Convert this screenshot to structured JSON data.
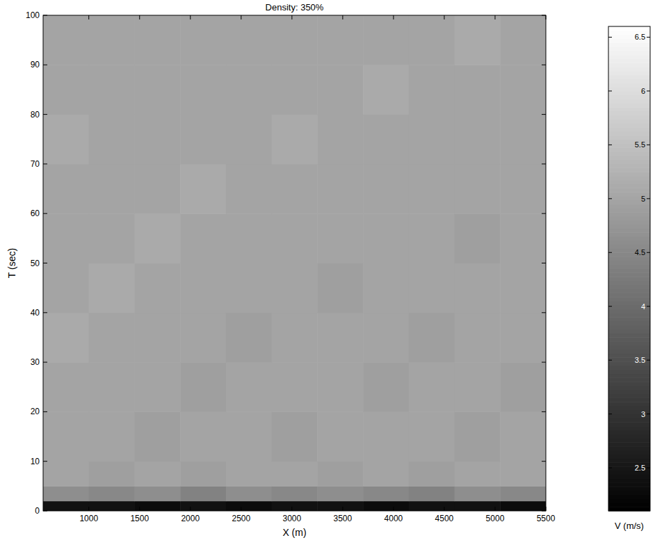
{
  "chart_data": {
    "type": "heatmap",
    "title": "Density: 350%",
    "x_label": "X (m)",
    "y_label": "T (sec)",
    "xlim": [
      550,
      5500
    ],
    "ylim": [
      0,
      100
    ],
    "xticks": [
      1000,
      1500,
      2000,
      2500,
      3000,
      3500,
      4000,
      4500,
      5000,
      5500
    ],
    "yticks": [
      0,
      10,
      20,
      30,
      40,
      50,
      60,
      70,
      80,
      90,
      100
    ],
    "x_edges": [
      550,
      1000,
      1450,
      1900,
      2350,
      2800,
      3250,
      3700,
      4150,
      4600,
      5050,
      5500
    ],
    "y_edges": [
      0,
      2,
      5,
      10,
      20,
      30,
      40,
      50,
      60,
      70,
      80,
      90,
      100
    ],
    "cells": [
      [
        2.4,
        2.4,
        2.3,
        2.4,
        2.3,
        2.4,
        2.4,
        2.3,
        2.4,
        2.4,
        2.3
      ],
      [
        4.6,
        4.5,
        4.6,
        4.4,
        4.6,
        4.5,
        4.6,
        4.5,
        4.4,
        4.6,
        4.5
      ],
      [
        5.0,
        4.9,
        5.0,
        4.9,
        5.0,
        5.0,
        4.9,
        5.0,
        4.9,
        5.0,
        5.0
      ],
      [
        5.0,
        5.0,
        4.9,
        5.0,
        5.0,
        4.9,
        5.0,
        5.0,
        5.0,
        4.9,
        5.0
      ],
      [
        5.0,
        5.0,
        5.0,
        4.9,
        5.0,
        5.0,
        5.0,
        4.9,
        5.0,
        5.0,
        4.9
      ],
      [
        5.1,
        5.0,
        5.0,
        5.0,
        4.9,
        5.0,
        5.0,
        5.0,
        4.9,
        5.0,
        5.0
      ],
      [
        5.0,
        5.1,
        5.0,
        5.0,
        5.0,
        5.0,
        4.9,
        5.0,
        5.0,
        5.0,
        5.0
      ],
      [
        5.0,
        5.0,
        5.1,
        5.0,
        5.0,
        5.0,
        5.0,
        5.0,
        5.0,
        4.9,
        5.0
      ],
      [
        5.0,
        5.0,
        5.0,
        5.1,
        5.0,
        5.0,
        5.0,
        5.0,
        5.0,
        5.0,
        5.0
      ],
      [
        5.1,
        5.0,
        5.0,
        5.0,
        5.0,
        5.1,
        5.0,
        5.0,
        5.0,
        5.0,
        5.0
      ],
      [
        5.0,
        5.0,
        5.0,
        5.0,
        5.0,
        5.0,
        5.0,
        5.1,
        5.0,
        5.0,
        5.0
      ],
      [
        5.0,
        5.0,
        5.0,
        5.0,
        5.0,
        5.0,
        5.0,
        5.0,
        5.0,
        5.1,
        5.0
      ]
    ],
    "colorbar": {
      "label": "V (m/s)",
      "range": [
        2.1,
        6.6
      ],
      "ticks": [
        2.5,
        3,
        3.5,
        4,
        4.5,
        5,
        5.5,
        6,
        6.5
      ]
    }
  }
}
